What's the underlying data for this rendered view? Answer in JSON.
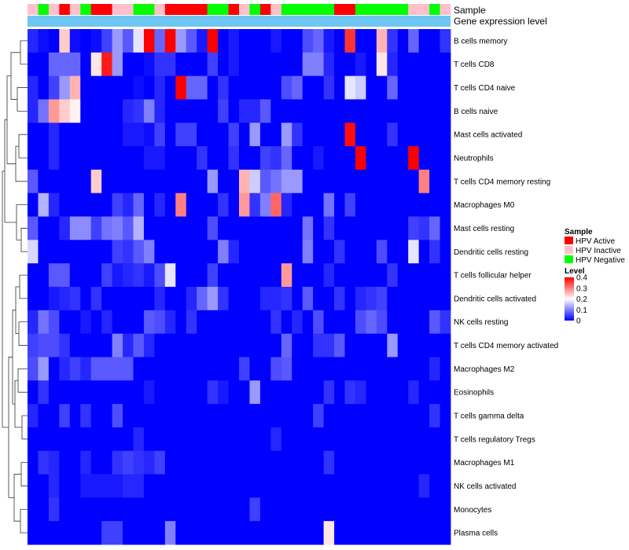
{
  "chart_data": {
    "type": "heatmap",
    "title": "",
    "annotation_labels": [
      "Sample",
      "Gene expression level"
    ],
    "rows": [
      "B cells memory",
      "T cells CD8",
      "T cells CD4 naive",
      "B cells naive",
      "Mast cells activated",
      "Neutrophils",
      "T cells CD4 memory resting",
      "Macrophages M0",
      "Mast cells resting",
      "Dendritic cells resting",
      "T cells follicular helper",
      "Dendritic cells activated",
      "NK cells resting",
      "T cells CD4 memory activated",
      "Macrophages M2",
      "Eosinophils",
      "T cells gamma delta",
      "T cells regulatory  Tregs",
      "Macrophages M1",
      "NK cells activated",
      "Monocytes",
      "Plasma cells"
    ],
    "sample_groups": [
      "N",
      "G",
      "N",
      "R",
      "N",
      "G",
      "R",
      "R",
      "N",
      "N",
      "G",
      "G",
      "N",
      "R",
      "R",
      "R",
      "R",
      "G",
      "G",
      "R",
      "N",
      "G",
      "R",
      "N",
      "G",
      "G",
      "G",
      "G",
      "G",
      "R",
      "R",
      "G",
      "G",
      "G",
      "G",
      "G",
      "N",
      "N",
      "G",
      "N"
    ],
    "sample_group_codes": {
      "R": "HPV Active",
      "N": "HPV Inactive",
      "G": "HPV Negative"
    },
    "values": [
      [
        0.03,
        0.01,
        0.0,
        0.24,
        0.01,
        0.0,
        0.01,
        0.05,
        0.12,
        0.07,
        0.18,
        0.4,
        0.08,
        0.41,
        0.12,
        0.07,
        0.02,
        0.4,
        0.0,
        0.02,
        0.0,
        0.0,
        0.0,
        0.02,
        0.0,
        0.0,
        0.06,
        0.08,
        0.02,
        0.0,
        0.36,
        0.0,
        0.0,
        0.26,
        0.04,
        0.0,
        0.08,
        0.0,
        0.0,
        0.04
      ],
      [
        0.0,
        0.0,
        0.08,
        0.08,
        0.08,
        0.0,
        0.22,
        0.38,
        0.12,
        0.0,
        0.0,
        0.01,
        0.04,
        0.04,
        0.0,
        0.0,
        0.0,
        0.05,
        0.0,
        0.02,
        0.0,
        0.0,
        0.0,
        0.0,
        0.0,
        0.0,
        0.1,
        0.1,
        0.03,
        0.0,
        0.0,
        0.02,
        0.0,
        0.22,
        0.03,
        0.0,
        0.0,
        0.0,
        0.0,
        0.0
      ],
      [
        0.03,
        0.0,
        0.05,
        0.12,
        0.26,
        0.0,
        0.0,
        0.0,
        0.0,
        0.0,
        0.01,
        0.0,
        0.03,
        0.0,
        0.4,
        0.08,
        0.08,
        0.0,
        0.04,
        0.0,
        0.0,
        0.0,
        0.0,
        0.0,
        0.06,
        0.08,
        0.0,
        0.0,
        0.04,
        0.0,
        0.18,
        0.16,
        0.0,
        0.0,
        0.08,
        0.0,
        0.0,
        0.0,
        0.0,
        0.0
      ],
      [
        0.03,
        0.09,
        0.28,
        0.24,
        0.21,
        0.0,
        0.0,
        0.0,
        0.0,
        0.03,
        0.04,
        0.1,
        0.03,
        0.0,
        0.0,
        0.0,
        0.0,
        0.0,
        0.05,
        0.0,
        0.03,
        0.03,
        0.07,
        0.0,
        0.0,
        0.0,
        0.0,
        0.0,
        0.0,
        0.0,
        0.0,
        0.0,
        0.0,
        0.0,
        0.0,
        0.0,
        0.0,
        0.0,
        0.0,
        0.0
      ],
      [
        0.0,
        0.0,
        0.03,
        0.0,
        0.0,
        0.0,
        0.0,
        0.0,
        0.0,
        0.02,
        0.02,
        0.01,
        0.05,
        0.0,
        0.05,
        0.05,
        0.0,
        0.0,
        0.0,
        0.05,
        0.0,
        0.12,
        0.0,
        0.0,
        0.12,
        0.04,
        0.0,
        0.0,
        0.0,
        0.0,
        0.39,
        0.0,
        0.0,
        0.0,
        0.04,
        0.0,
        0.0,
        0.0,
        0.0,
        0.0
      ],
      [
        0.0,
        0.0,
        0.03,
        0.0,
        0.0,
        0.0,
        0.0,
        0.0,
        0.0,
        0.0,
        0.0,
        0.02,
        0.02,
        0.0,
        0.0,
        0.0,
        0.04,
        0.0,
        0.0,
        0.04,
        0.0,
        0.0,
        0.05,
        0.04,
        0.08,
        0.0,
        0.0,
        0.02,
        0.0,
        0.0,
        0.0,
        0.4,
        0.0,
        0.0,
        0.0,
        0.0,
        0.4,
        0.0,
        0.0,
        0.0
      ],
      [
        0.07,
        0.0,
        0.0,
        0.0,
        0.0,
        0.0,
        0.24,
        0.0,
        0.0,
        0.0,
        0.0,
        0.0,
        0.0,
        0.0,
        0.0,
        0.0,
        0.0,
        0.12,
        0.0,
        0.0,
        0.26,
        0.16,
        0.07,
        0.09,
        0.12,
        0.12,
        0.0,
        0.0,
        0.0,
        0.0,
        0.0,
        0.0,
        0.0,
        0.0,
        0.0,
        0.0,
        0.0,
        0.3,
        0.0,
        0.0
      ],
      [
        0.0,
        0.14,
        0.03,
        0.0,
        0.0,
        0.0,
        0.0,
        0.0,
        0.05,
        0.03,
        0.08,
        0.0,
        0.03,
        0.0,
        0.3,
        0.0,
        0.0,
        0.0,
        0.04,
        0.0,
        0.28,
        0.04,
        0.1,
        0.32,
        0.03,
        0.0,
        0.0,
        0.0,
        0.09,
        0.0,
        0.05,
        0.0,
        0.0,
        0.0,
        0.0,
        0.0,
        0.0,
        0.0,
        0.0,
        0.0
      ],
      [
        0.07,
        0.0,
        0.0,
        0.03,
        0.11,
        0.11,
        0.05,
        0.09,
        0.1,
        0.07,
        0.14,
        0.0,
        0.0,
        0.0,
        0.0,
        0.0,
        0.0,
        0.06,
        0.0,
        0.0,
        0.0,
        0.0,
        0.0,
        0.0,
        0.0,
        0.0,
        0.09,
        0.0,
        0.04,
        0.0,
        0.0,
        0.0,
        0.0,
        0.0,
        0.0,
        0.0,
        0.05,
        0.04,
        0.08,
        0.0
      ],
      [
        0.17,
        0.0,
        0.0,
        0.0,
        0.0,
        0.0,
        0.0,
        0.0,
        0.05,
        0.04,
        0.07,
        0.1,
        0.0,
        0.0,
        0.0,
        0.0,
        0.0,
        0.0,
        0.1,
        0.03,
        0.0,
        0.0,
        0.0,
        0.0,
        0.0,
        0.0,
        0.1,
        0.0,
        0.0,
        0.04,
        0.0,
        0.0,
        0.0,
        0.06,
        0.0,
        0.0,
        0.18,
        0.0,
        0.04,
        0.0
      ],
      [
        0.0,
        0.0,
        0.07,
        0.07,
        0.0,
        0.0,
        0.0,
        0.05,
        0.02,
        0.03,
        0.04,
        0.02,
        0.06,
        0.18,
        0.0,
        0.0,
        0.0,
        0.05,
        0.0,
        0.0,
        0.0,
        0.0,
        0.0,
        0.0,
        0.28,
        0.0,
        0.0,
        0.0,
        0.03,
        0.0,
        0.0,
        0.0,
        0.0,
        0.0,
        0.04,
        0.0,
        0.0,
        0.0,
        0.0,
        0.0
      ],
      [
        0.0,
        0.0,
        0.02,
        0.03,
        0.04,
        0.0,
        0.04,
        0.0,
        0.0,
        0.0,
        0.0,
        0.0,
        0.03,
        0.0,
        0.0,
        0.03,
        0.08,
        0.12,
        0.04,
        0.0,
        0.0,
        0.0,
        0.03,
        0.03,
        0.04,
        0.0,
        0.07,
        0.0,
        0.0,
        0.04,
        0.0,
        0.03,
        0.04,
        0.05,
        0.0,
        0.0,
        0.0,
        0.0,
        0.0,
        0.0
      ],
      [
        0.03,
        0.09,
        0.06,
        0.0,
        0.0,
        0.02,
        0.0,
        0.03,
        0.0,
        0.0,
        0.0,
        0.07,
        0.06,
        0.03,
        0.0,
        0.04,
        0.0,
        0.0,
        0.0,
        0.0,
        0.0,
        0.0,
        0.0,
        0.04,
        0.0,
        0.03,
        0.0,
        0.06,
        0.0,
        0.0,
        0.0,
        0.06,
        0.08,
        0.06,
        0.0,
        0.0,
        0.0,
        0.0,
        0.07,
        0.04
      ],
      [
        0.05,
        0.06,
        0.06,
        0.04,
        0.0,
        0.0,
        0.0,
        0.0,
        0.1,
        0.03,
        0.07,
        0.03,
        0.0,
        0.0,
        0.0,
        0.0,
        0.0,
        0.0,
        0.0,
        0.0,
        0.0,
        0.0,
        0.0,
        0.0,
        0.08,
        0.0,
        0.0,
        0.04,
        0.04,
        0.07,
        0.0,
        0.0,
        0.0,
        0.0,
        0.12,
        0.0,
        0.0,
        0.0,
        0.0,
        0.0
      ],
      [
        0.06,
        0.12,
        0.0,
        0.03,
        0.05,
        0.03,
        0.07,
        0.07,
        0.07,
        0.07,
        0.0,
        0.0,
        0.0,
        0.0,
        0.0,
        0.0,
        0.0,
        0.0,
        0.0,
        0.0,
        0.05,
        0.0,
        0.0,
        0.06,
        0.07,
        0.0,
        0.0,
        0.0,
        0.0,
        0.0,
        0.0,
        0.0,
        0.0,
        0.0,
        0.0,
        0.0,
        0.0,
        0.0,
        0.03,
        0.0
      ],
      [
        0.0,
        0.04,
        0.0,
        0.0,
        0.0,
        0.0,
        0.0,
        0.0,
        0.0,
        0.0,
        0.0,
        0.02,
        0.0,
        0.0,
        0.0,
        0.0,
        0.0,
        0.04,
        0.02,
        0.0,
        0.0,
        0.12,
        0.0,
        0.0,
        0.0,
        0.0,
        0.0,
        0.0,
        0.04,
        0.0,
        0.04,
        0.03,
        0.0,
        0.0,
        0.0,
        0.0,
        0.03,
        0.0,
        0.0,
        0.0
      ],
      [
        0.03,
        0.0,
        0.0,
        0.05,
        0.0,
        0.04,
        0.0,
        0.0,
        0.06,
        0.0,
        0.0,
        0.0,
        0.0,
        0.0,
        0.0,
        0.0,
        0.0,
        0.0,
        0.0,
        0.0,
        0.0,
        0.0,
        0.0,
        0.0,
        0.0,
        0.0,
        0.0,
        0.05,
        0.0,
        0.0,
        0.0,
        0.0,
        0.0,
        0.0,
        0.0,
        0.0,
        0.0,
        0.0,
        0.04,
        0.0
      ],
      [
        0.0,
        0.0,
        0.0,
        0.0,
        0.0,
        0.0,
        0.0,
        0.0,
        0.0,
        0.0,
        0.03,
        0.0,
        0.0,
        0.0,
        0.0,
        0.0,
        0.0,
        0.0,
        0.0,
        0.0,
        0.0,
        0.0,
        0.0,
        0.03,
        0.0,
        0.0,
        0.0,
        0.0,
        0.0,
        0.0,
        0.0,
        0.0,
        0.0,
        0.0,
        0.0,
        0.0,
        0.0,
        0.0,
        0.0,
        0.0
      ],
      [
        0.0,
        0.04,
        0.03,
        0.0,
        0.0,
        0.03,
        0.0,
        0.0,
        0.04,
        0.05,
        0.04,
        0.03,
        0.05,
        0.0,
        0.0,
        0.0,
        0.0,
        0.0,
        0.0,
        0.0,
        0.0,
        0.0,
        0.0,
        0.0,
        0.0,
        0.0,
        0.0,
        0.0,
        0.04,
        0.0,
        0.0,
        0.0,
        0.0,
        0.0,
        0.0,
        0.0,
        0.0,
        0.0,
        0.0,
        0.0
      ],
      [
        0.0,
        0.0,
        0.03,
        0.0,
        0.0,
        0.02,
        0.02,
        0.02,
        0.02,
        0.03,
        0.03,
        0.0,
        0.0,
        0.0,
        0.0,
        0.0,
        0.0,
        0.0,
        0.0,
        0.0,
        0.0,
        0.0,
        0.0,
        0.0,
        0.0,
        0.0,
        0.0,
        0.0,
        0.0,
        0.0,
        0.0,
        0.0,
        0.0,
        0.0,
        0.0,
        0.0,
        0.0,
        0.03,
        0.0,
        0.0
      ],
      [
        0.0,
        0.0,
        0.04,
        0.0,
        0.0,
        0.0,
        0.0,
        0.0,
        0.0,
        0.0,
        0.0,
        0.0,
        0.0,
        0.0,
        0.0,
        0.0,
        0.0,
        0.0,
        0.0,
        0.0,
        0.0,
        0.05,
        0.0,
        0.0,
        0.0,
        0.0,
        0.0,
        0.0,
        0.0,
        0.0,
        0.0,
        0.0,
        0.0,
        0.0,
        0.0,
        0.0,
        0.0,
        0.0,
        0.0,
        0.0
      ],
      [
        0.0,
        0.0,
        0.0,
        0.0,
        0.0,
        0.0,
        0.0,
        0.05,
        0.05,
        0.0,
        0.0,
        0.0,
        0.0,
        0.1,
        0.0,
        0.0,
        0.0,
        0.0,
        0.0,
        0.0,
        0.0,
        0.0,
        0.0,
        0.0,
        0.0,
        0.0,
        0.0,
        0.0,
        0.22,
        0.0,
        0.0,
        0.0,
        0.0,
        0.0,
        0.0,
        0.0,
        0.0,
        0.0,
        0.0,
        0.0
      ]
    ],
    "legend": {
      "sample": {
        "title": "Sample",
        "entries": [
          {
            "label": "HPV Active",
            "color": "#FF0000"
          },
          {
            "label": "HPV Inactive",
            "color": "#FFC0CB"
          },
          {
            "label": "HPV Negative",
            "color": "#00FF00"
          }
        ]
      },
      "level": {
        "title": "Level",
        "ticks": [
          0.4,
          0.3,
          0.2,
          0.1,
          0
        ],
        "range": [
          0,
          0.4
        ],
        "color_low": "#0000FF",
        "color_mid": "#FFFFFF",
        "color_high": "#FF0000"
      }
    },
    "gene_expression_bar_color": "#6EC6F2"
  }
}
